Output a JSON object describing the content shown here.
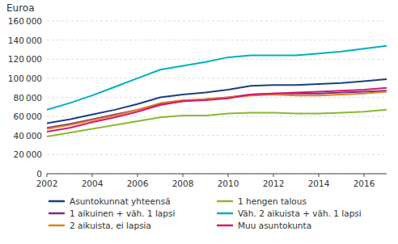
{
  "chart_data": {
    "type": "line",
    "y_label": "Euroa",
    "x": [
      2002,
      2003,
      2004,
      2005,
      2006,
      2007,
      2008,
      2009,
      2010,
      2011,
      2012,
      2013,
      2014,
      2015,
      2016,
      2017
    ],
    "series": [
      {
        "name": "Asuntokunnat yhteensä",
        "color": "#1a4080",
        "values": [
          53000,
          57000,
          62000,
          67000,
          73000,
          80000,
          83000,
          85000,
          88000,
          92000,
          93000,
          93000,
          94000,
          95000,
          97000,
          99000
        ]
      },
      {
        "name": "1 aikuinen + väh. 1 lapsi",
        "color": "#7b2f82",
        "values": [
          48000,
          52000,
          57000,
          62000,
          67000,
          73000,
          76000,
          78000,
          80000,
          83000,
          84000,
          84000,
          84000,
          85000,
          86000,
          87000
        ]
      },
      {
        "name": "2 aikuista, ei lapsia",
        "color": "#e08020",
        "values": [
          47000,
          51000,
          56000,
          61000,
          67000,
          74000,
          77000,
          78000,
          80000,
          82000,
          83000,
          82000,
          82000,
          83000,
          84000,
          86000
        ]
      },
      {
        "name": "1 hengen talous",
        "color": "#8cb832",
        "values": [
          39000,
          43000,
          47000,
          51000,
          55000,
          59000,
          61000,
          61000,
          63000,
          64000,
          64000,
          63000,
          63000,
          64000,
          65000,
          67000
        ]
      },
      {
        "name": "Väh. 2 aikuista + väh. 1 lapsi",
        "color": "#00b0c0",
        "values": [
          67000,
          74000,
          82000,
          91000,
          100000,
          109000,
          113000,
          117000,
          122000,
          124000,
          124000,
          124000,
          126000,
          128000,
          131000,
          134000
        ]
      },
      {
        "name": "Muu asuntokunta",
        "color": "#d81870",
        "values": [
          44000,
          48000,
          54000,
          59000,
          65000,
          72000,
          76000,
          77000,
          79000,
          83000,
          84000,
          85000,
          86000,
          87000,
          88000,
          90000
        ]
      }
    ],
    "xlim": [
      2002,
      2017
    ],
    "xticks": [
      2002,
      2004,
      2006,
      2008,
      2010,
      2012,
      2014,
      2016
    ],
    "ylim": [
      0,
      160000
    ],
    "yticks": [
      0,
      {
        "value": 20000,
        "label": "20 000"
      },
      {
        "value": 40000,
        "label": "40 000"
      },
      {
        "value": 60000,
        "label": "60 000"
      },
      {
        "value": 80000,
        "label": "80 000"
      },
      {
        "value": 100000,
        "label": "100 000"
      },
      {
        "value": 120000,
        "label": "120 000"
      },
      {
        "value": 140000,
        "label": "140 000"
      },
      {
        "value": 160000,
        "label": "160 000"
      }
    ],
    "grid": true,
    "legend": "bottom"
  }
}
